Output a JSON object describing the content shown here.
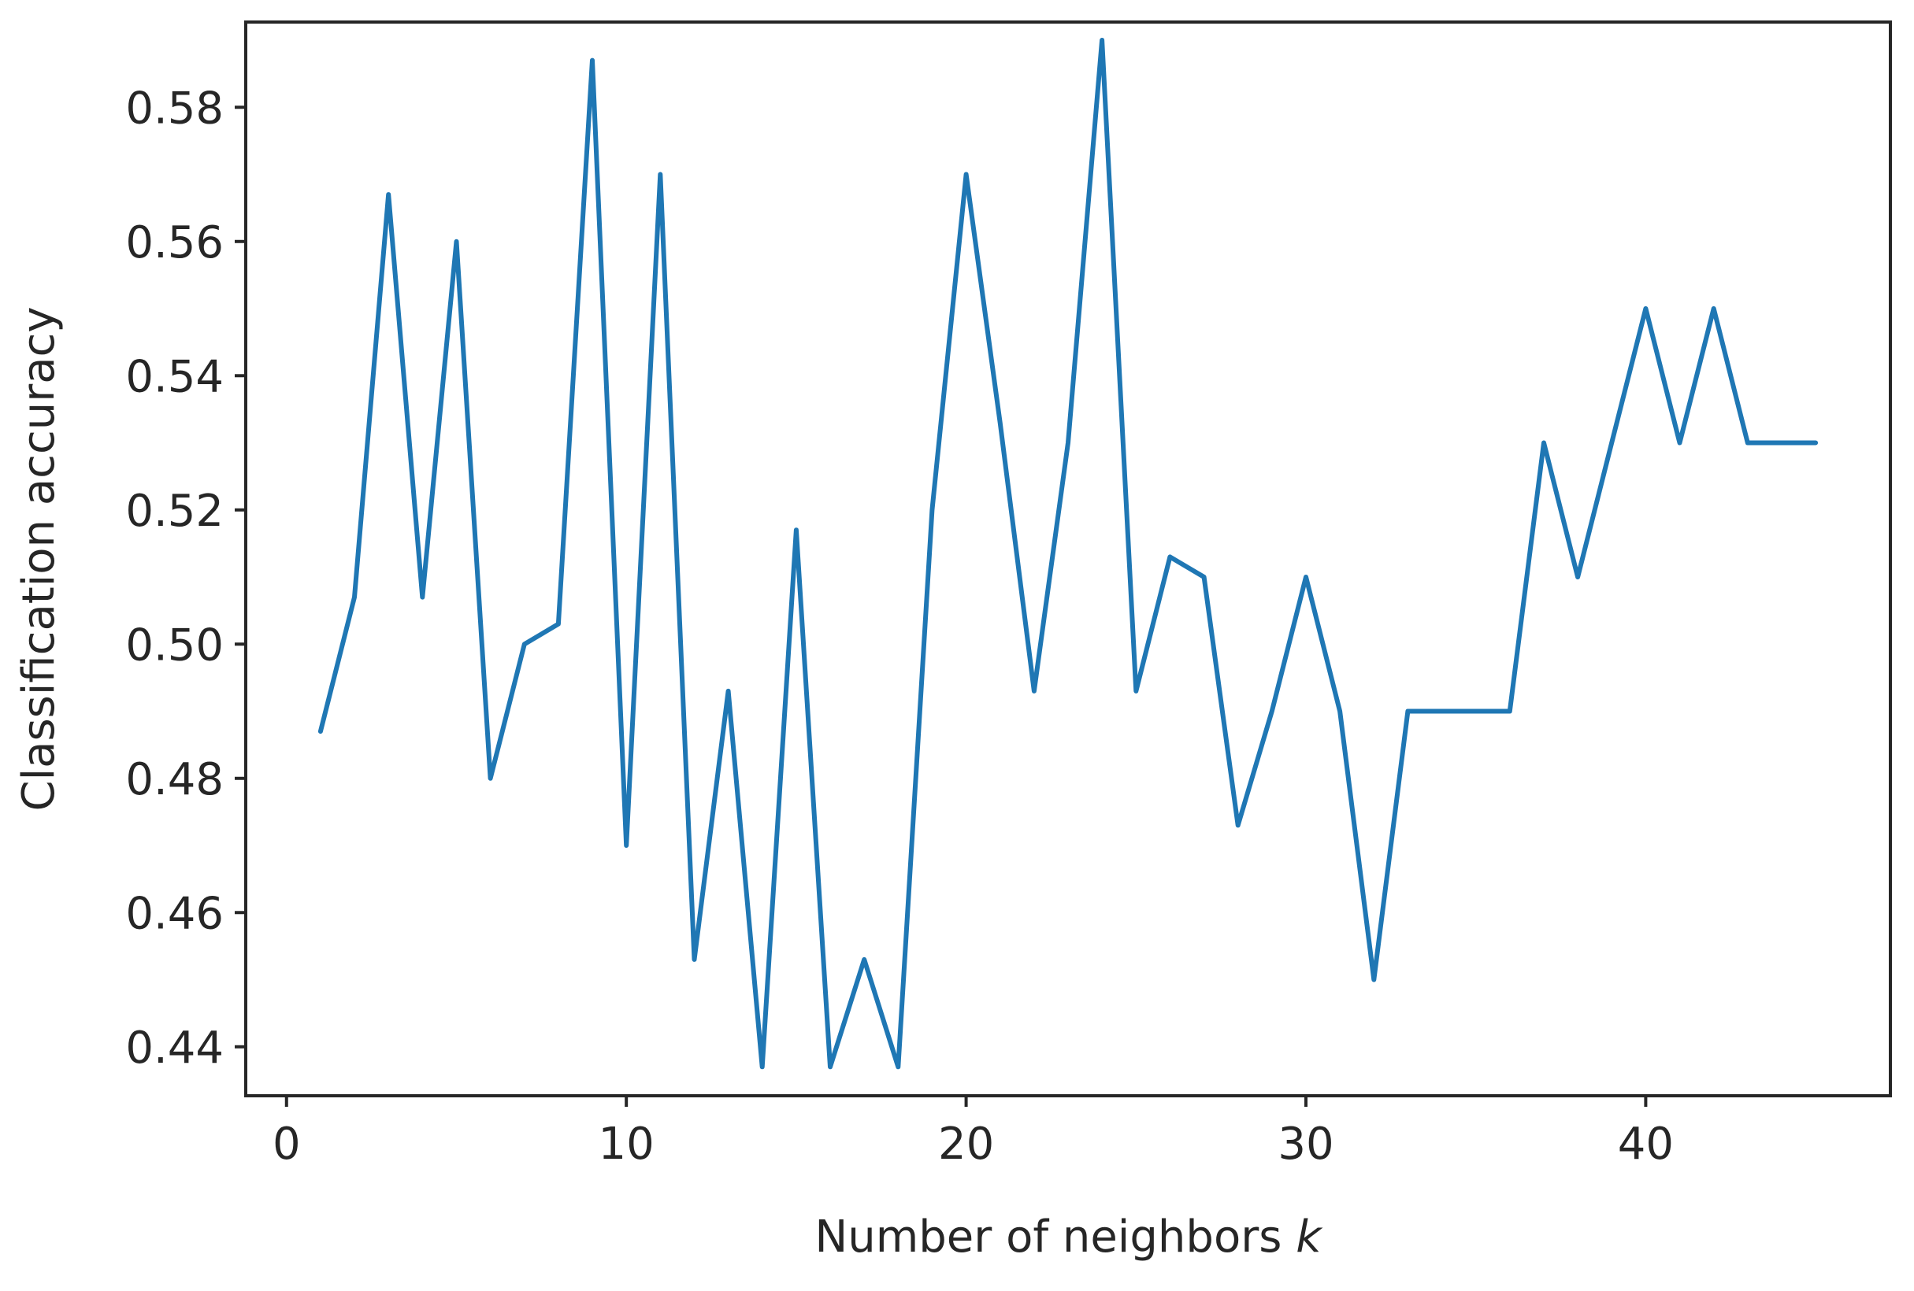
{
  "chart_data": {
    "type": "line",
    "title": "",
    "xlabel": "Number of neighbors",
    "xlabel_var": "k",
    "ylabel": "Classification accuracy",
    "xlim": [
      -1.2,
      47.2
    ],
    "ylim": [
      0.4327,
      0.5927
    ],
    "xticks": [
      0,
      10,
      20,
      30,
      40
    ],
    "yticks": [
      0.44,
      0.46,
      0.48,
      0.5,
      0.52,
      0.54,
      0.56,
      0.58
    ],
    "x_tick_labels": [
      "0",
      "10",
      "20",
      "30",
      "40"
    ],
    "y_tick_labels": [
      "0.44",
      "0.46",
      "0.48",
      "0.50",
      "0.52",
      "0.54",
      "0.56",
      "0.58"
    ],
    "grid": false,
    "legend": "none",
    "series": [
      {
        "color": "#1f77b4",
        "x": [
          1,
          2,
          3,
          4,
          5,
          6,
          7,
          8,
          9,
          10,
          11,
          12,
          13,
          14,
          15,
          16,
          17,
          18,
          19,
          20,
          21,
          22,
          23,
          24,
          25,
          26,
          27,
          28,
          29,
          30,
          31,
          32,
          33,
          34,
          35,
          36,
          37,
          38,
          39,
          40,
          41,
          42,
          43,
          44,
          45
        ],
        "y": [
          0.487,
          0.507,
          0.567,
          0.507,
          0.56,
          0.48,
          0.5,
          0.503,
          0.587,
          0.47,
          0.57,
          0.453,
          0.493,
          0.437,
          0.517,
          0.437,
          0.453,
          0.437,
          0.52,
          0.57,
          0.533,
          0.493,
          0.53,
          0.59,
          0.493,
          0.513,
          0.51,
          0.473,
          0.49,
          0.51,
          0.49,
          0.45,
          0.49,
          0.49,
          0.49,
          0.49,
          0.53,
          0.51,
          0.53,
          0.55,
          0.53,
          0.55,
          0.53,
          0.53,
          0.53
        ]
      }
    ]
  }
}
